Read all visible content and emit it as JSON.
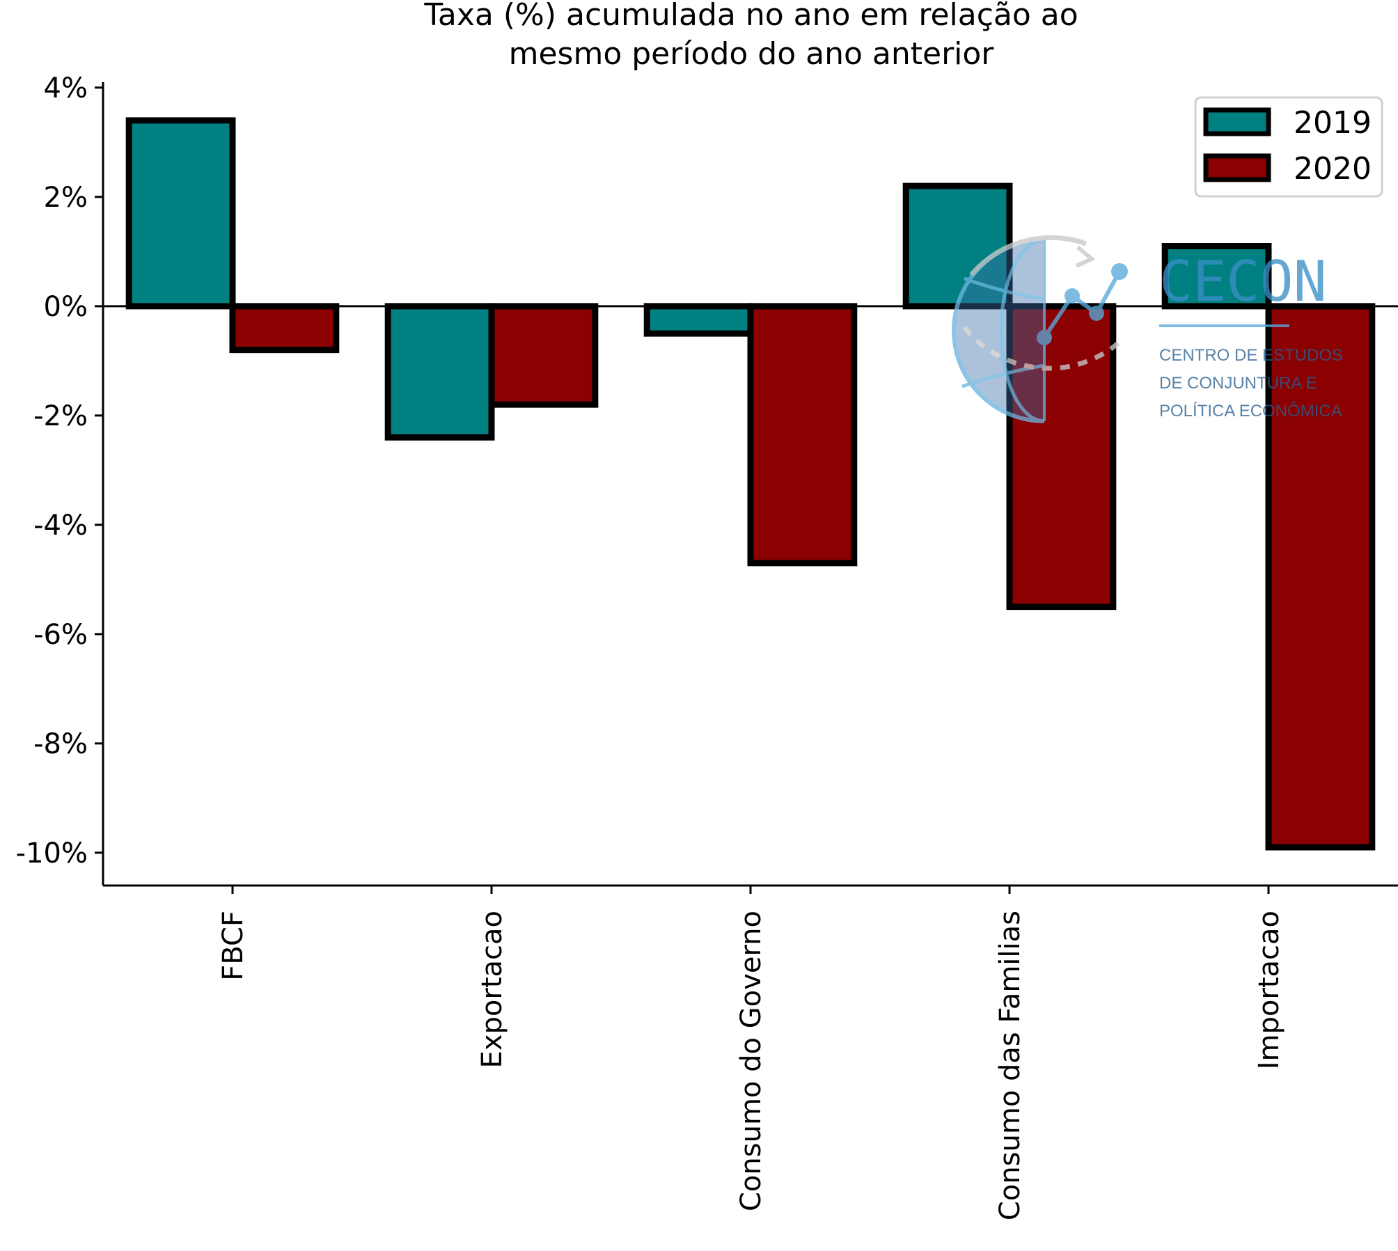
{
  "chart_data": {
    "type": "bar",
    "title": "Taxa (%) acumulada no ano em relação ao mesmo período do ano anterior",
    "title_lines": [
      "Taxa (%) acumulada no ano em relação ao",
      "mesmo período do ano anterior"
    ],
    "categories": [
      "FBCF",
      "Exportacao",
      "Consumo do Governo",
      "Consumo das Familias",
      "Importacao"
    ],
    "series": [
      {
        "name": "2019",
        "color": "#008080",
        "values": [
          3.4,
          -2.4,
          -0.5,
          2.2,
          1.1
        ]
      },
      {
        "name": "2020",
        "color": "#8b0000",
        "values": [
          -0.8,
          -1.8,
          -4.7,
          -5.5,
          -9.9
        ]
      }
    ],
    "ylim": [
      -10.6,
      4.1
    ],
    "yticks": [
      4,
      2,
      0,
      -2,
      -4,
      -6,
      -8,
      -10
    ],
    "ytick_labels": [
      "4%",
      "2%",
      "0%",
      "-2%",
      "-4%",
      "-6%",
      "-8%",
      "-10%"
    ],
    "xlabel": "",
    "ylabel": "",
    "grid": false,
    "legend_position": "top-right",
    "zero_line": true
  },
  "watermark": {
    "brand": "CECON",
    "lines": [
      "CENTRO DE ESTUDOS",
      "DE CONJUNTURA E",
      "POLÍTICA ECONÔMICA"
    ]
  }
}
